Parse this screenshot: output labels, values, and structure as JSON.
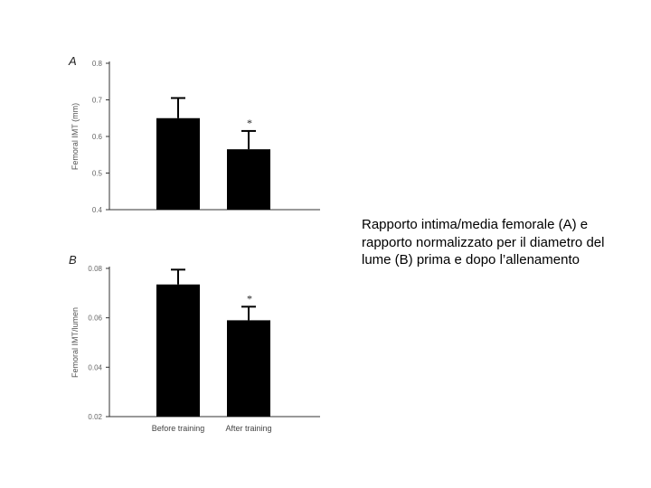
{
  "caption": "Rapporto intima/media femorale (A) e rapporto normalizzato per il diametro del lume (B) prima e dopo l’allenamento",
  "chart_data": [
    {
      "type": "bar",
      "panel_label": "A",
      "ylabel": "Femoral IMT (mm)",
      "xlabel": "",
      "ylim": [
        0.4,
        0.8
      ],
      "yticks": [
        "0.8",
        "0.7",
        "0.6",
        "0.5",
        "0.4"
      ],
      "categories": [
        "Before training",
        "After training"
      ],
      "show_category_labels": false,
      "values": [
        0.65,
        0.565
      ],
      "errors": [
        0.055,
        0.05
      ],
      "significance": [
        "",
        "*"
      ],
      "bar_color": "#000000"
    },
    {
      "type": "bar",
      "panel_label": "B",
      "ylabel": "Femoral IMT/lumen",
      "xlabel": "",
      "ylim": [
        0.02,
        0.08
      ],
      "yticks": [
        "0.08",
        "0.06",
        "0.04",
        "0.02"
      ],
      "categories": [
        "Before training",
        "After training"
      ],
      "show_category_labels": true,
      "values": [
        0.0735,
        0.059
      ],
      "errors": [
        0.006,
        0.0055
      ],
      "significance": [
        "",
        "*"
      ],
      "bar_color": "#000000"
    }
  ]
}
